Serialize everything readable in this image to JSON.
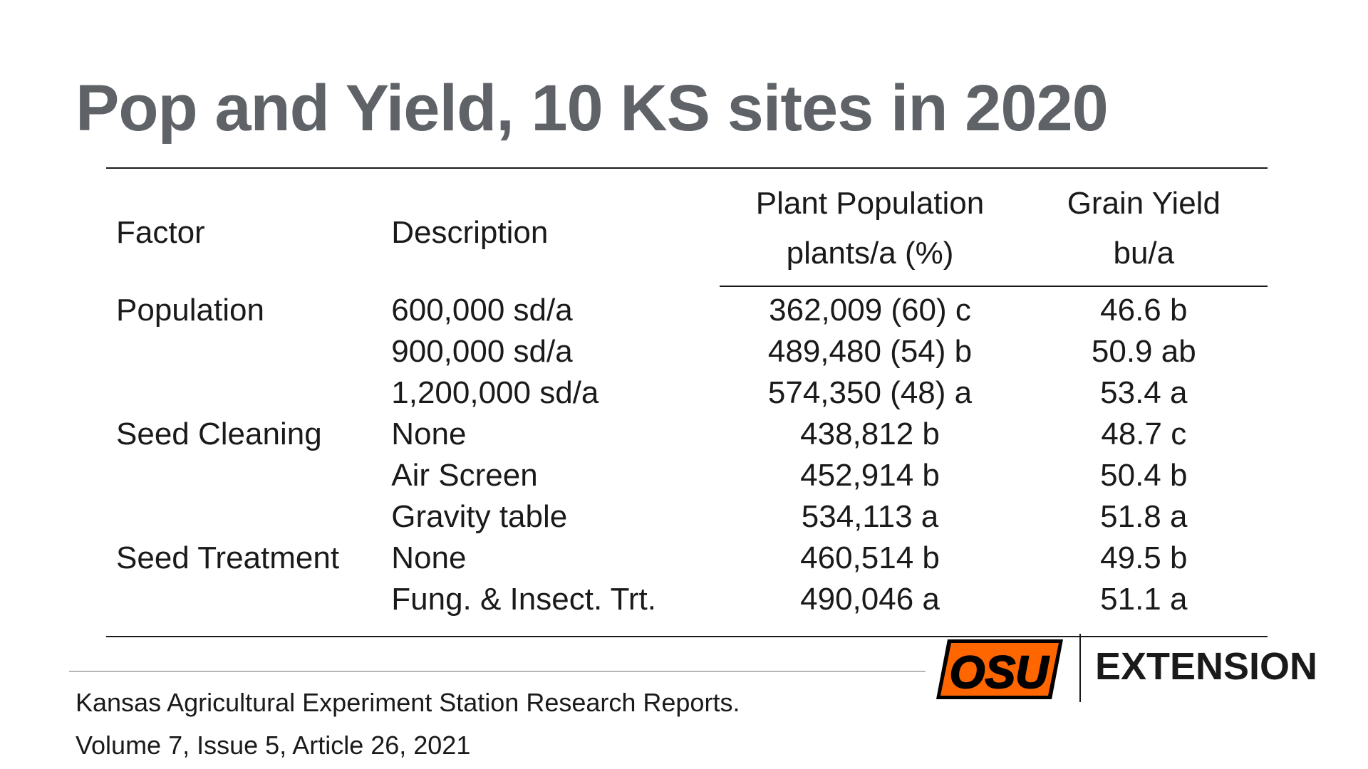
{
  "title": "Pop and Yield, 10 KS sites in 2020",
  "table": {
    "headers": {
      "factor": "Factor",
      "description": "Description",
      "plant_population": "Plant Population",
      "plant_population_unit": "plants/a (%)",
      "grain_yield": "Grain Yield",
      "grain_yield_unit": "bu/a"
    },
    "rows": [
      {
        "factor": "Population",
        "description": "600,000 sd/a",
        "population": "362,009 (60) c",
        "yield": "46.6 b"
      },
      {
        "factor": "",
        "description": "900,000 sd/a",
        "population": "489,480 (54) b",
        "yield": "50.9 ab"
      },
      {
        "factor": "",
        "description": "1,200,000 sd/a",
        "population": "574,350 (48) a",
        "yield": "53.4 a"
      },
      {
        "factor": "Seed Cleaning",
        "description": "None",
        "population": "438,812 b",
        "yield": "48.7 c"
      },
      {
        "factor": "",
        "description": "Air Screen",
        "population": "452,914 b",
        "yield": "50.4 b"
      },
      {
        "factor": "",
        "description": "Gravity table",
        "population": "534,113 a",
        "yield": "51.8 a"
      },
      {
        "factor": "Seed Treatment",
        "description": "None",
        "population": "460,514 b",
        "yield": "49.5 b"
      },
      {
        "factor": "",
        "description": "Fung. & Insect. Trt.",
        "population": "490,046 a",
        "yield": "51.1 a"
      }
    ]
  },
  "footer": {
    "citation_line_1": "Kansas Agricultural Experiment Station Research Reports.",
    "citation_line_2": "Volume 7, Issue 5, Article 26, 2021"
  },
  "branding": {
    "logo_icon": "osu-logo-icon",
    "logo_text": "OSU",
    "extension_label": "EXTENSION",
    "brand_orange": "#FF6600",
    "brand_black": "#000000"
  },
  "colors": {
    "title_gray": "#5f6368",
    "text": "#1a1a1a"
  }
}
